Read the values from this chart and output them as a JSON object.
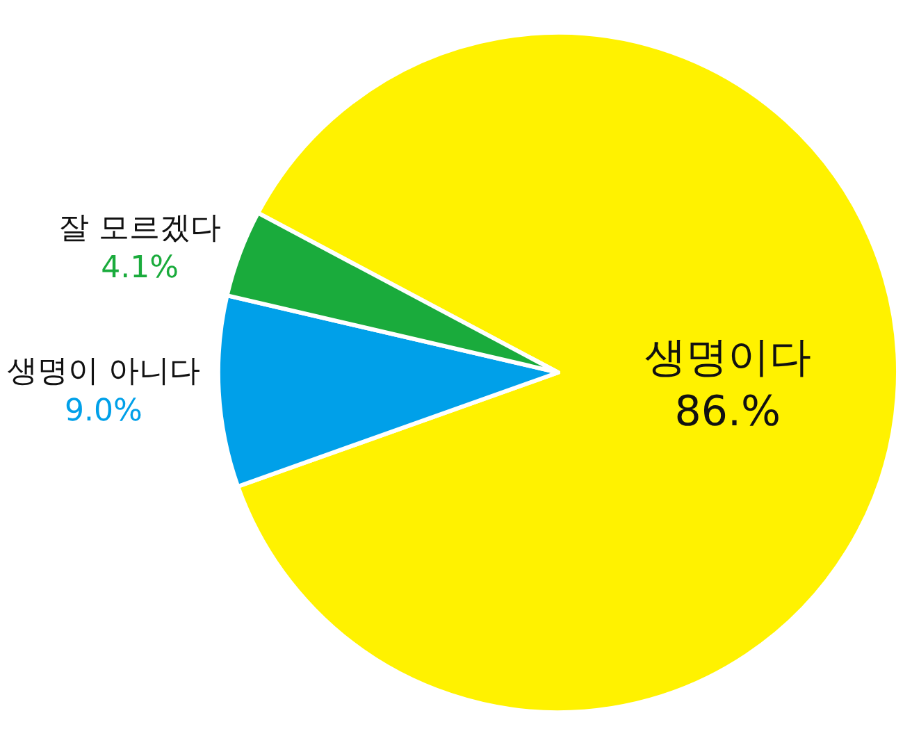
{
  "chart_data": {
    "type": "pie",
    "categories": [
      "생명이다",
      "생명이 아니다",
      "잘 모르겠다"
    ],
    "values": [
      86,
      9.0,
      4.1
    ],
    "value_labels": [
      "86.%",
      "9.0%",
      "4.1%"
    ],
    "colors": [
      "#fff200",
      "#00a0e9",
      "#1aab3c"
    ],
    "legend": false
  }
}
